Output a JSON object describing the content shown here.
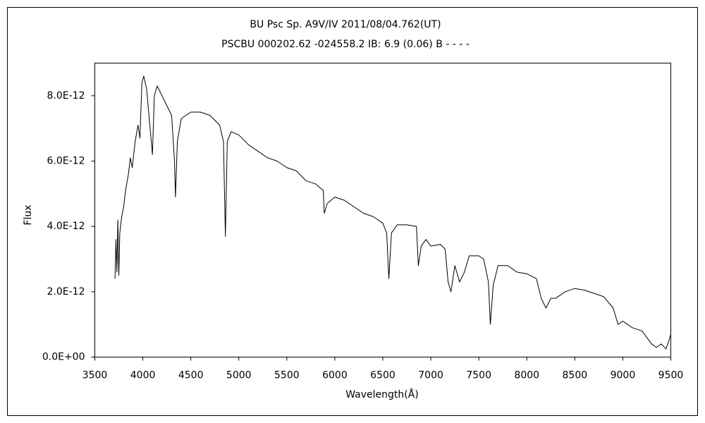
{
  "chart_data": {
    "type": "line",
    "title": "BU Psc    Sp. A9V/IV    2011/08/04.762(UT)",
    "subtitle": "PSCBU 000202.62  -024558.2  IB: 6.9 (0.06) B - - - -",
    "x_label": "Wavelength(Å)",
    "y_label": "Flux",
    "color": "#000000",
    "grid": false,
    "xlim": [
      3500,
      9500
    ],
    "xticks": [
      3500,
      4000,
      4500,
      5000,
      5500,
      6000,
      6500,
      7000,
      7500,
      8000,
      8500,
      9000,
      9500
    ],
    "ylim": [
      0,
      9e-12
    ],
    "yticks": [
      {
        "value": 0,
        "label": "0.0E+00"
      },
      {
        "value": 2e-12,
        "label": "2.0E-12"
      },
      {
        "value": 4e-12,
        "label": "4.0E-12"
      },
      {
        "value": 6e-12,
        "label": "6.0E-12"
      },
      {
        "value": 8e-12,
        "label": "8.0E-12"
      }
    ],
    "x": [
      3710,
      3720,
      3730,
      3740,
      3750,
      3760,
      3780,
      3800,
      3820,
      3850,
      3870,
      3890,
      3920,
      3950,
      3970,
      3990,
      4010,
      4040,
      4070,
      4100,
      4120,
      4150,
      4200,
      4250,
      4300,
      4330,
      4340,
      4360,
      4400,
      4450,
      4500,
      4600,
      4700,
      4800,
      4840,
      4860,
      4880,
      4920,
      5000,
      5100,
      5200,
      5300,
      5400,
      5500,
      5600,
      5700,
      5800,
      5880,
      5890,
      5920,
      6000,
      6100,
      6200,
      6300,
      6400,
      6500,
      6540,
      6563,
      6590,
      6650,
      6750,
      6850,
      6870,
      6900,
      6950,
      7000,
      7100,
      7150,
      7180,
      7210,
      7250,
      7300,
      7350,
      7400,
      7500,
      7550,
      7600,
      7620,
      7650,
      7700,
      7800,
      7900,
      8000,
      8100,
      8150,
      8200,
      8250,
      8300,
      8400,
      8500,
      8600,
      8700,
      8800,
      8900,
      8950,
      9000,
      9100,
      9200,
      9300,
      9350,
      9400,
      9450,
      9480,
      9500
    ],
    "values": [
      2.4e-12,
      3.6e-12,
      2.6e-12,
      4.2e-12,
      2.5e-12,
      3.8e-12,
      4.3e-12,
      4.6e-12,
      5.1e-12,
      5.6e-12,
      6.1e-12,
      5.8e-12,
      6.6e-12,
      7.1e-12,
      6.7e-12,
      8.4e-12,
      8.6e-12,
      8.2e-12,
      7.2e-12,
      6.2e-12,
      8e-12,
      8.3e-12,
      8e-12,
      7.7e-12,
      7.4e-12,
      6e-12,
      4.9e-12,
      6.6e-12,
      7.3e-12,
      7.4e-12,
      7.5e-12,
      7.5e-12,
      7.4e-12,
      7.1e-12,
      6.6e-12,
      3.7e-12,
      6.6e-12,
      6.9e-12,
      6.8e-12,
      6.5e-12,
      6.3e-12,
      6.1e-12,
      6e-12,
      5.8e-12,
      5.7e-12,
      5.4e-12,
      5.3e-12,
      5.1e-12,
      4.4e-12,
      4.7e-12,
      4.9e-12,
      4.8e-12,
      4.6e-12,
      4.4e-12,
      4.3e-12,
      4.1e-12,
      3.8e-12,
      2.4e-12,
      3.8e-12,
      4.05e-12,
      4.05e-12,
      4e-12,
      2.8e-12,
      3.4e-12,
      3.6e-12,
      3.4e-12,
      3.45e-12,
      3.3e-12,
      2.3e-12,
      2e-12,
      2.8e-12,
      2.3e-12,
      2.6e-12,
      3.1e-12,
      3.1e-12,
      3e-12,
      2.3e-12,
      1e-12,
      2.2e-12,
      2.8e-12,
      2.8e-12,
      2.6e-12,
      2.55e-12,
      2.4e-12,
      1.8e-12,
      1.5e-12,
      1.8e-12,
      1.8e-12,
      2e-12,
      2.1e-12,
      2.05e-12,
      1.95e-12,
      1.85e-12,
      1.5e-12,
      1e-12,
      1.1e-12,
      9e-13,
      8e-13,
      4e-13,
      3e-13,
      4e-13,
      2.5e-13,
      5e-13,
      7e-13
    ]
  }
}
